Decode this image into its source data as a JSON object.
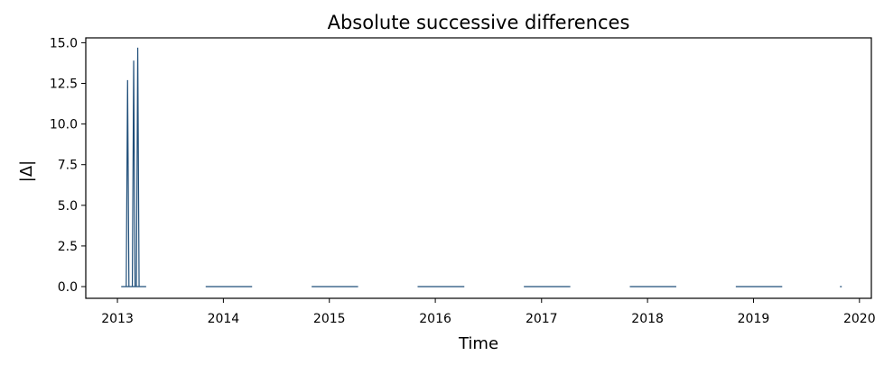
{
  "chart_data": {
    "type": "line",
    "title": "Absolute successive differences",
    "xlabel": "Time",
    "ylabel": "|Δ|",
    "x_ticks": [
      "2013",
      "2014",
      "2015",
      "2016",
      "2017",
      "2018",
      "2019",
      "2020"
    ],
    "y_ticks": [
      "0.0",
      "2.5",
      "5.0",
      "7.5",
      "10.0",
      "12.5",
      "15.0"
    ],
    "xlim": [
      "2012-09-14",
      "2020-02-11"
    ],
    "ylim": [
      -0.72,
      15.3
    ],
    "grid": false,
    "line_color": "#1f4e79",
    "series": [
      {
        "segments": [
          {
            "start": "2013-01-14",
            "end": "2013-04-10",
            "value": 0.0
          },
          {
            "start": "2013-11-01",
            "end": "2014-04-10",
            "value": 0.0
          },
          {
            "start": "2014-11-01",
            "end": "2015-04-10",
            "value": 0.0
          },
          {
            "start": "2015-11-01",
            "end": "2016-04-10",
            "value": 0.0
          },
          {
            "start": "2016-11-01",
            "end": "2017-04-10",
            "value": 0.0
          },
          {
            "start": "2017-11-01",
            "end": "2018-04-10",
            "value": 0.0
          },
          {
            "start": "2018-11-01",
            "end": "2019-04-10",
            "value": 0.0
          },
          {
            "start": "2019-10-26",
            "end": "2019-11-01",
            "value": 0.0
          }
        ],
        "spikes": [
          {
            "date": "2013-02-05",
            "value": 12.7
          },
          {
            "date": "2013-02-26",
            "value": 13.9
          },
          {
            "date": "2013-03-12",
            "value": 14.7
          }
        ]
      }
    ]
  }
}
